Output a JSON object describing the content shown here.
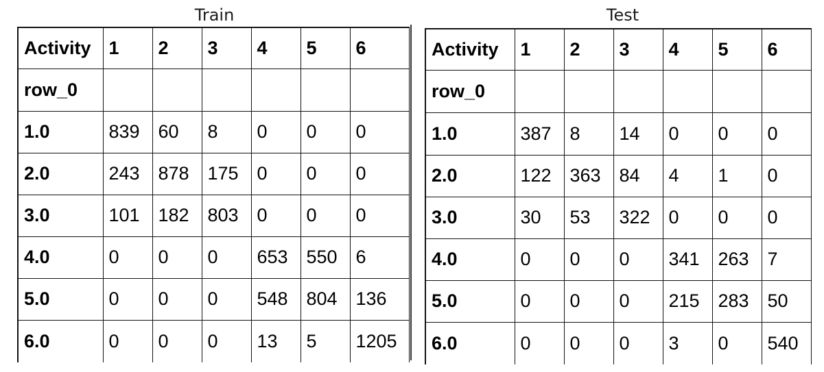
{
  "train": {
    "caption": "Train",
    "header": [
      "Activity",
      "1",
      "2",
      "3",
      "4",
      "5",
      "6"
    ],
    "subheader": "row_0",
    "rows": [
      {
        "label": "1.0",
        "cells": [
          "839",
          "60",
          "8",
          "0",
          "0",
          "0"
        ]
      },
      {
        "label": "2.0",
        "cells": [
          "243",
          "878",
          "175",
          "0",
          "0",
          "0"
        ]
      },
      {
        "label": "3.0",
        "cells": [
          "101",
          "182",
          "803",
          "0",
          "0",
          "0"
        ]
      },
      {
        "label": "4.0",
        "cells": [
          "0",
          "0",
          "0",
          "653",
          "550",
          "6"
        ]
      },
      {
        "label": "5.0",
        "cells": [
          "0",
          "0",
          "0",
          "548",
          "804",
          "136"
        ]
      },
      {
        "label": "6.0",
        "cells": [
          "0",
          "0",
          "0",
          "13",
          "5",
          "1205"
        ]
      }
    ]
  },
  "test": {
    "caption": "Test",
    "header": [
      "Activity",
      "1",
      "2",
      "3",
      "4",
      "5",
      "6"
    ],
    "subheader": "row_0",
    "rows": [
      {
        "label": "1.0",
        "cells": [
          "387",
          "8",
          "14",
          "0",
          "0",
          "0"
        ]
      },
      {
        "label": "2.0",
        "cells": [
          "122",
          "363",
          "84",
          "4",
          "1",
          "0"
        ]
      },
      {
        "label": "3.0",
        "cells": [
          "30",
          "53",
          "322",
          "0",
          "0",
          "0"
        ]
      },
      {
        "label": "4.0",
        "cells": [
          "0",
          "0",
          "0",
          "341",
          "263",
          "7"
        ]
      },
      {
        "label": "5.0",
        "cells": [
          "0",
          "0",
          "0",
          "215",
          "283",
          "50"
        ]
      },
      {
        "label": "6.0",
        "cells": [
          "0",
          "0",
          "0",
          "3",
          "0",
          "540"
        ]
      }
    ]
  }
}
